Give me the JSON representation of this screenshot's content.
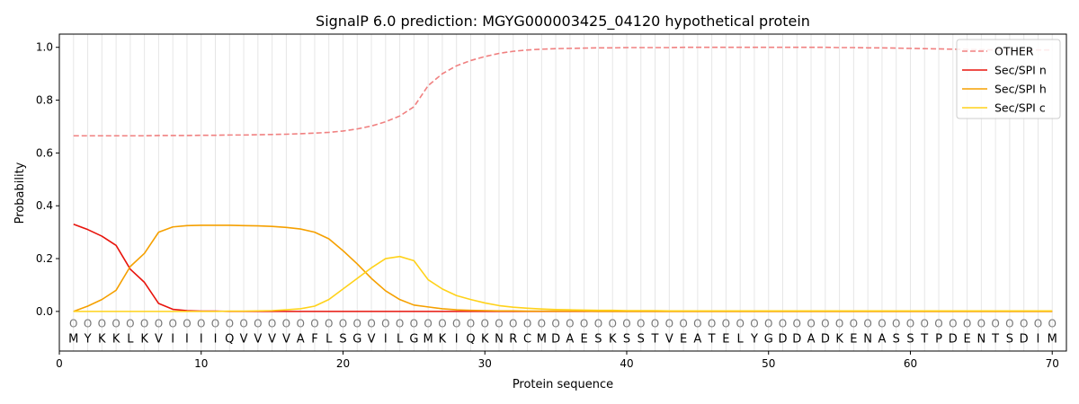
{
  "chart_data": {
    "type": "line",
    "title": "SignalP 6.0 prediction: MGYG000003425_04120 hypothetical protein",
    "xlabel": "Protein sequence",
    "ylabel": "Probability",
    "xlim": [
      0,
      71
    ],
    "ylim": [
      -0.15,
      1.05
    ],
    "x_ticks": [
      0,
      10,
      20,
      30,
      40,
      50,
      60,
      70
    ],
    "y_ticks": [
      0.0,
      0.2,
      0.4,
      0.6,
      0.8,
      1.0
    ],
    "x_tick_labels": [
      "0",
      "10",
      "20",
      "30",
      "40",
      "50",
      "60",
      "70"
    ],
    "y_tick_labels": [
      "0.0",
      "0.2",
      "0.4",
      "0.6",
      "0.8",
      "1.0"
    ],
    "grid": "vertical lines at each residue",
    "legend_position": "top-right",
    "sequence": [
      "M",
      "Y",
      "K",
      "K",
      "L",
      "K",
      "V",
      "I",
      "I",
      "I",
      "I",
      "Q",
      "V",
      "V",
      "V",
      "V",
      "A",
      "F",
      "L",
      "S",
      "G",
      "V",
      "I",
      "L",
      "G",
      "M",
      "K",
      "I",
      "Q",
      "K",
      "N",
      "R",
      "C",
      "M",
      "D",
      "A",
      "E",
      "S",
      "K",
      "S",
      "S",
      "T",
      "V",
      "E",
      "A",
      "T",
      "E",
      "L",
      "Y",
      "G",
      "D",
      "D",
      "A",
      "D",
      "K",
      "E",
      "N",
      "A",
      "S",
      "S",
      "T",
      "P",
      "D",
      "E",
      "N",
      "T",
      "S",
      "D",
      "I",
      "M"
    ],
    "region_marker": "O",
    "series": [
      {
        "name": "OTHER",
        "color": "#f08080",
        "dash": "dashed",
        "values": [
          0.665,
          0.665,
          0.665,
          0.665,
          0.665,
          0.665,
          0.666,
          0.666,
          0.666,
          0.667,
          0.667,
          0.668,
          0.668,
          0.669,
          0.67,
          0.671,
          0.673,
          0.675,
          0.678,
          0.683,
          0.691,
          0.702,
          0.718,
          0.74,
          0.775,
          0.855,
          0.9,
          0.93,
          0.95,
          0.965,
          0.977,
          0.985,
          0.99,
          0.993,
          0.995,
          0.996,
          0.997,
          0.998,
          0.998,
          0.999,
          0.999,
          0.999,
          0.999,
          1.0,
          1.0,
          1.0,
          1.0,
          1.0,
          1.0,
          1.0,
          1.0,
          1.0,
          1.0,
          1.0,
          0.999,
          0.999,
          0.998,
          0.998,
          0.997,
          0.996,
          0.995,
          0.994,
          0.993,
          0.992,
          0.991,
          0.99,
          0.99,
          0.99,
          0.99,
          0.99
        ]
      },
      {
        "name": "Sec/SPI n",
        "color": "#e8140c",
        "dash": "solid",
        "values": [
          0.33,
          0.31,
          0.285,
          0.25,
          0.16,
          0.11,
          0.03,
          0.008,
          0.003,
          0.001,
          0.001,
          0.0,
          0.0,
          0.0,
          0.0,
          0.0,
          0.0,
          0.0,
          0.0,
          0.0,
          0.0,
          0.0,
          0.0,
          0.0,
          0.0,
          0.0,
          0.0,
          0.0,
          0.0,
          0.0,
          0.0,
          0.0,
          0.0,
          0.0,
          0.0,
          0.0,
          0.0,
          0.0,
          0.0,
          0.0,
          0.0,
          0.0,
          0.0,
          0.0,
          0.0,
          0.0,
          0.0,
          0.0,
          0.0,
          0.0,
          0.0,
          0.0,
          0.0,
          0.0,
          0.0,
          0.0,
          0.0,
          0.0,
          0.0,
          0.0,
          0.0,
          0.0,
          0.0,
          0.0,
          0.0,
          0.0,
          0.0,
          0.0,
          0.0,
          0.0
        ]
      },
      {
        "name": "Sec/SPI h",
        "color": "#f5a000",
        "dash": "solid",
        "values": [
          0.0,
          0.02,
          0.045,
          0.08,
          0.17,
          0.22,
          0.3,
          0.32,
          0.325,
          0.326,
          0.326,
          0.326,
          0.325,
          0.324,
          0.322,
          0.318,
          0.312,
          0.3,
          0.275,
          0.23,
          0.18,
          0.125,
          0.078,
          0.045,
          0.024,
          0.017,
          0.01,
          0.006,
          0.004,
          0.003,
          0.002,
          0.002,
          0.001,
          0.001,
          0.001,
          0.001,
          0.001,
          0.0,
          0.0,
          0.0,
          0.0,
          0.0,
          0.0,
          0.0,
          0.0,
          0.0,
          0.0,
          0.0,
          0.0,
          0.0,
          0.0,
          0.0,
          0.0,
          0.0,
          0.0,
          0.0,
          0.0,
          0.0,
          0.0,
          0.0,
          0.0,
          0.0,
          0.0,
          0.0,
          0.0,
          0.0,
          0.0,
          0.0,
          0.0,
          0.0
        ]
      },
      {
        "name": "Sec/SPI c",
        "color": "#ffd21a",
        "dash": "solid",
        "values": [
          0.0,
          0.0,
          0.0,
          0.0,
          0.0,
          0.0,
          0.0,
          0.0,
          0.0,
          0.0,
          0.0,
          0.001,
          0.001,
          0.002,
          0.003,
          0.006,
          0.01,
          0.02,
          0.045,
          0.085,
          0.125,
          0.165,
          0.2,
          0.208,
          0.192,
          0.12,
          0.085,
          0.06,
          0.045,
          0.032,
          0.022,
          0.016,
          0.012,
          0.009,
          0.007,
          0.006,
          0.005,
          0.004,
          0.004,
          0.003,
          0.003,
          0.003,
          0.002,
          0.002,
          0.002,
          0.002,
          0.002,
          0.002,
          0.002,
          0.002,
          0.002,
          0.002,
          0.002,
          0.002,
          0.002,
          0.002,
          0.002,
          0.002,
          0.002,
          0.002,
          0.002,
          0.002,
          0.002,
          0.002,
          0.002,
          0.002,
          0.002,
          0.002,
          0.002,
          0.002
        ]
      }
    ]
  }
}
